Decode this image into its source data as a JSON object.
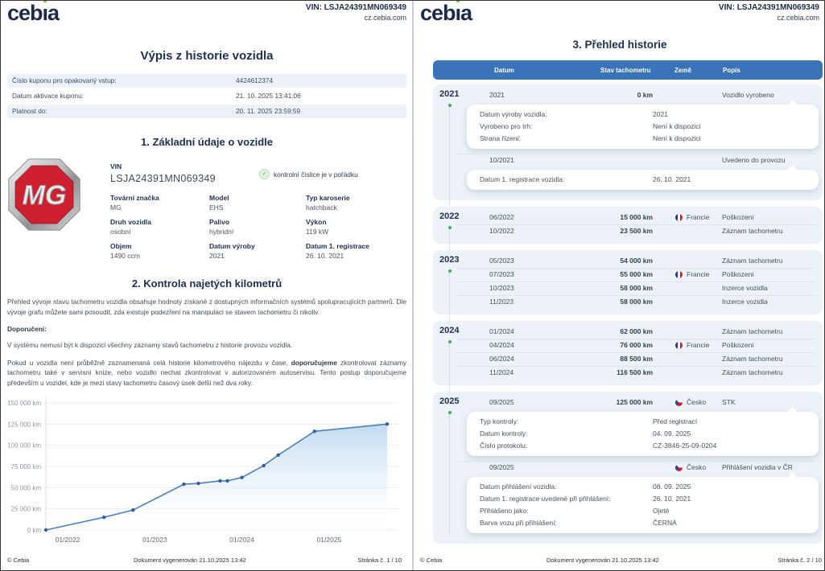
{
  "colors": {
    "brand_navy": "#1c2b4a",
    "accent_blue": "#3a73b8",
    "row_shade": "#edf2f9",
    "timeline_green": "#3fae5a",
    "chart_line": "#4b80b8",
    "mg_red": "#cf2030"
  },
  "brand": {
    "logo_text": "cebia",
    "vin_line": "VIN: LSJA24391MN069349",
    "site": "cz.cebia.com"
  },
  "page1": {
    "title": "Výpis z historie vozidla",
    "coupon_rows": [
      {
        "label": "Číslo kuponu pro opakovaný vstup:",
        "value": "4424612374"
      },
      {
        "label": "Datum aktivace kuponu:",
        "value": "21. 10. 2025 13:41:06"
      },
      {
        "label": "Platnost do:",
        "value": "20. 11. 2025 23:59:59"
      }
    ],
    "section1_title": "1. Základní údaje o vozidle",
    "mg_logo_text": "MG",
    "vin_label": "VIN",
    "vin_value": "LSJA24391MN069349",
    "vin_check_text": "kontrolní číslice je v pořádku",
    "check_icon": "✓",
    "props": [
      {
        "label": "Tovární značka",
        "value": "MG"
      },
      {
        "label": "Model",
        "value": "EHS"
      },
      {
        "label": "Typ karoserie",
        "value": "hatchback"
      },
      {
        "label": "Druh vozidla",
        "value": "osobní"
      },
      {
        "label": "Palivo",
        "value": "hybridní"
      },
      {
        "label": "Výkon",
        "value": "119 kW"
      },
      {
        "label": "Objem",
        "value": "1490 ccm"
      },
      {
        "label": "Datum výroby",
        "value": "2021"
      },
      {
        "label": "Datum 1. registrace",
        "value": "26. 10. 2021"
      }
    ],
    "section2_title": "2. Kontrola najetých kilometrů",
    "para1": "Přehled vývoje stavu tachometru vozidla obsahuje hodnoty získané z dostupných informačních systémů spolupracujících partnerů. Dle vývoje grafu můžete sami posoudit, zda existuje podezření na manipulaci se stavem tachometru či nikoliv.",
    "recommendation_label": "Doporučení:",
    "para2": "V systému nemusí být k dispozici všechny záznamy stavů tachometru z historie provozu vozidla.",
    "para3_pre": "Pokud u vozidla není průběžně zaznamenaná celá historie kilometrového nájezdu v čase, ",
    "para3_bold": "doporučujeme",
    "para3_post": " zkontrolovat záznamy tachometru také v servisní knize, nebo vozidlo nechat zkontrolovat v autorizovaném autoservisu. Tento postup doporučujeme především u vozidel, kde je mezi stavy tachometru časový úsek delší než dva roky.",
    "footer": {
      "copyright": "© Cebia",
      "generated": "Dokument vygenerován 21.10.2025 13:42",
      "page": "Stránka č. 1 / 10"
    }
  },
  "chart_data": {
    "type": "line",
    "title": "",
    "xlabel": "",
    "ylabel": "",
    "ylim": [
      0,
      150000
    ],
    "y_ticks": [
      "0 km",
      "25 000 km",
      "50 000 km",
      "75 000 km",
      "100 000 km",
      "125 000 km",
      "150 000 km"
    ],
    "x_ticks": [
      "01/2022",
      "01/2023",
      "01/2024",
      "01/2025"
    ],
    "grid": true,
    "legend": false,
    "series": [
      {
        "name": "Stav tachometru",
        "points": [
          {
            "date": "10/2021",
            "km": 0
          },
          {
            "date": "06/2022",
            "km": 15000
          },
          {
            "date": "10/2022",
            "km": 23500
          },
          {
            "date": "05/2023",
            "km": 54000
          },
          {
            "date": "07/2023",
            "km": 55000
          },
          {
            "date": "10/2023",
            "km": 58000
          },
          {
            "date": "11/2023",
            "km": 58000
          },
          {
            "date": "01/2024",
            "km": 62000
          },
          {
            "date": "04/2024",
            "km": 76000
          },
          {
            "date": "06/2024",
            "km": 88500
          },
          {
            "date": "11/2024",
            "km": 116500
          },
          {
            "date": "09/2025",
            "km": 125000
          }
        ]
      }
    ]
  },
  "page2": {
    "title": "3. Přehled historie",
    "columns": {
      "datum": "Datum",
      "stav": "Stav tachometru",
      "zeme": "Země",
      "popis": "Popis"
    },
    "flag_icons": {
      "fr": "france-flag-icon",
      "cz": "czech-flag-icon"
    },
    "groups": [
      {
        "year": "2021",
        "rows": [
          {
            "type": "event",
            "datum": "2021",
            "km": "0 km",
            "country": "",
            "flag": "",
            "popis": "Vozidlo vyrobeno"
          },
          {
            "type": "card",
            "items": [
              {
                "label": "Datum výroby vozidla:",
                "value": "2021"
              },
              {
                "label": "Vyrobeno pro trh:",
                "value": "Není k dispozici"
              },
              {
                "label": "Strana řízení:",
                "value": "Není k dispozici"
              }
            ]
          },
          {
            "type": "event",
            "datum": "10/2021",
            "km": "",
            "country": "",
            "flag": "",
            "popis": "Uvedeno do provozu"
          },
          {
            "type": "card",
            "items": [
              {
                "label": "Datum 1. registrace vozidla:",
                "value": "26. 10. 2021"
              }
            ]
          }
        ]
      },
      {
        "year": "2022",
        "rows": [
          {
            "type": "event",
            "datum": "06/2022",
            "km": "15 000 km",
            "country": "Francie",
            "flag": "fr",
            "popis": "Poškození"
          },
          {
            "type": "event",
            "datum": "10/2022",
            "km": "23 500 km",
            "country": "",
            "flag": "",
            "popis": "Záznam tachometru"
          }
        ]
      },
      {
        "year": "2023",
        "rows": [
          {
            "type": "event",
            "datum": "05/2023",
            "km": "54 000 km",
            "country": "",
            "flag": "",
            "popis": "Záznam tachometru"
          },
          {
            "type": "event",
            "datum": "07/2023",
            "km": "55 000 km",
            "country": "Francie",
            "flag": "fr",
            "popis": "Poškození"
          },
          {
            "type": "event",
            "datum": "10/2023",
            "km": "58 000 km",
            "country": "",
            "flag": "",
            "popis": "Inzerce vozidla"
          },
          {
            "type": "event",
            "datum": "11/2023",
            "km": "58 000 km",
            "country": "",
            "flag": "",
            "popis": "Inzerce vozidla"
          }
        ]
      },
      {
        "year": "2024",
        "rows": [
          {
            "type": "event",
            "datum": "01/2024",
            "km": "62 000 km",
            "country": "",
            "flag": "",
            "popis": "Záznam tachometru"
          },
          {
            "type": "event",
            "datum": "04/2024",
            "km": "76 000 km",
            "country": "Francie",
            "flag": "fr",
            "popis": "Poškození"
          },
          {
            "type": "event",
            "datum": "06/2024",
            "km": "88 500 km",
            "country": "",
            "flag": "",
            "popis": "Záznam tachometru"
          },
          {
            "type": "event",
            "datum": "11/2024",
            "km": "116 500 km",
            "country": "",
            "flag": "",
            "popis": "Záznam tachometru"
          }
        ]
      },
      {
        "year": "2025",
        "rows": [
          {
            "type": "event",
            "datum": "09/2025",
            "km": "125 000 km",
            "country": "Česko",
            "flag": "cz",
            "popis": "STK"
          },
          {
            "type": "card",
            "items": [
              {
                "label": "Typ kontroly:",
                "value": "Před registrací"
              },
              {
                "label": "Datum kontroly:",
                "value": "04. 09. 2025"
              },
              {
                "label": "Číslo protokolu:",
                "value": "CZ-3846-25-09-0204"
              }
            ]
          },
          {
            "type": "event",
            "datum": "09/2025",
            "km": "",
            "country": "Česko",
            "flag": "cz",
            "popis": "Přihlášení vozidla v ČR"
          },
          {
            "type": "card",
            "items": [
              {
                "label": "Datum přihlášení vozidla:",
                "value": "08. 09. 2025"
              },
              {
                "label": "Datum 1. registrace uvedené při přihlášení:",
                "value": "26. 10. 2021"
              },
              {
                "label": "Přihlášeno jako:",
                "value": "Ojeté"
              },
              {
                "label": "Barva vozu při přihlášení:",
                "value": "ČERNÁ"
              }
            ]
          }
        ]
      }
    ],
    "footer": {
      "copyright": "© Cebia",
      "generated": "Dokument vygenerován 21.10.2025 13:42",
      "page": "Stránka č. 2 / 10"
    }
  }
}
